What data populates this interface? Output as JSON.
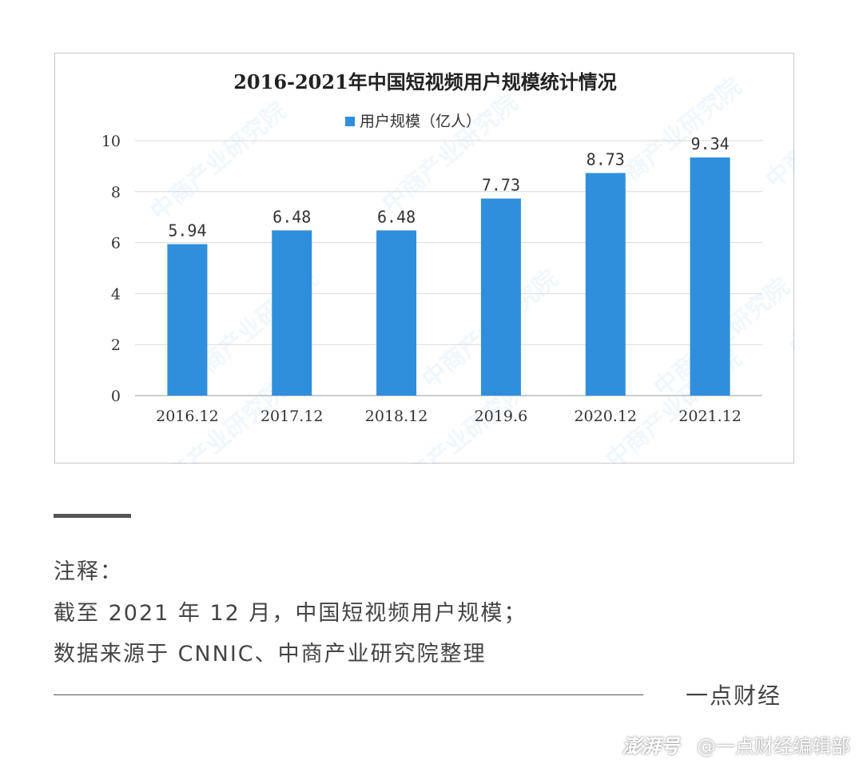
{
  "chart_data": {
    "type": "bar",
    "title": "2016-2021年中国短视频用户规模统计情况",
    "categories": [
      "2016.12",
      "2017.12",
      "2018.12",
      "2019.6",
      "2020.12",
      "2021.12"
    ],
    "series": [
      {
        "name": "用户规模（亿人）",
        "values": [
          5.94,
          6.48,
          6.48,
          7.73,
          8.73,
          9.34
        ]
      }
    ],
    "data_labels": [
      "5.94",
      "6.48",
      "6.48",
      "7.73",
      "8.73",
      "9.34"
    ],
    "y_ticks": [
      "0",
      "2",
      "4",
      "6",
      "8",
      "10"
    ],
    "ylim": [
      0,
      10
    ],
    "grid": true,
    "legend_position": "top-center",
    "bar_color": "#2f8fdc",
    "watermark": "中商产业研究院"
  },
  "notes": {
    "title": "注释：",
    "line1": "截至 2021 年 12 月，中国短视频用户规模；",
    "line2": "数据来源于 CNNIC、中商产业研究院整理"
  },
  "brand": "一点财经",
  "footer": {
    "logo": "澎湃号",
    "handle": "@一点财经编辑部"
  }
}
